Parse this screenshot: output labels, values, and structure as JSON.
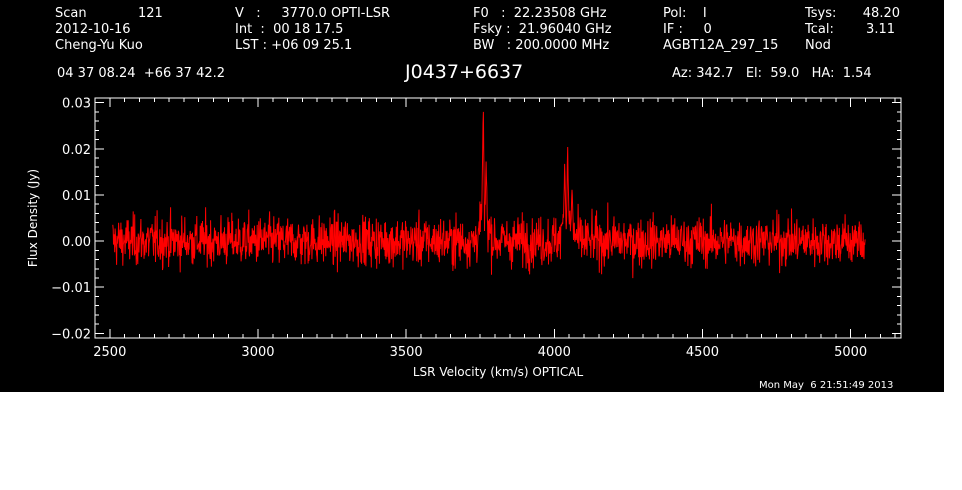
{
  "header": {
    "scan_label": "Scan",
    "scan_value": "121",
    "date": "2012-10-16",
    "observer": "Cheng-Yu Kuo",
    "v_line": "V   :     3770.0 OPTI-LSR",
    "int_line": "Int  :  00 18 17.5",
    "lst_line": "LST : +06 09 25.1",
    "f0_line": "F0   :  22.23508 GHz",
    "fsky_line": "Fsky :  21.96040 GHz",
    "bw_line": "BW   : 200.0000 MHz",
    "pol_line": "Pol:    I",
    "if_line": "IF :     0",
    "project": "AGBT12A_297_15",
    "tsys_label": "Tsys:",
    "tsys_value": "48.20",
    "tcal_label": "Tcal:",
    "tcal_value": "3.11",
    "nod": "Nod",
    "coords": "04 37 08.24  +66 37 42.2",
    "source": "J0437+6637",
    "az_el_ha": "Az: 342.7   El:  59.0   HA:  1.54",
    "timestamp": "Mon May  6 21:51:49 2013"
  },
  "chart_data": {
    "type": "line",
    "title": "J0437+6637",
    "xlabel": "LSR Velocity (km/s) OPTICAL",
    "ylabel": "Flux Density (Jy)",
    "xlim": [
      2450,
      5170
    ],
    "ylim": [
      -0.021,
      0.031
    ],
    "x_ticks": [
      2500,
      3000,
      3500,
      4000,
      4500,
      5000
    ],
    "x_tick_labels": [
      "2500",
      "3000",
      "3500",
      "4000",
      "4500",
      "5000"
    ],
    "y_ticks": [
      -0.02,
      -0.01,
      0.0,
      0.01,
      0.02,
      0.03
    ],
    "y_tick_labels": [
      "−0.02",
      "−0.01",
      "0.00",
      "0.01",
      "0.02",
      "0.03"
    ],
    "grid": false,
    "series": [
      {
        "color": "#ff0000",
        "x_range": [
          2510,
          5050
        ],
        "baseline": 0.0,
        "noise_rms": 0.0045,
        "features": [
          {
            "x": 3760,
            "peak": 0.029
          },
          {
            "x": 3770,
            "peak": 0.018
          },
          {
            "x": 4035,
            "peak": 0.016
          },
          {
            "x": 4045,
            "peak": 0.02
          },
          {
            "x": 4060,
            "peak": 0.012
          }
        ]
      }
    ]
  }
}
